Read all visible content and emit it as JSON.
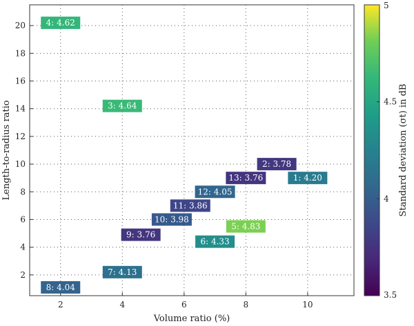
{
  "chart_data": {
    "type": "scatter",
    "title": "",
    "xlabel": "Volume ratio (%)",
    "ylabel": "Length-to-radius ratio",
    "xlim": [
      1,
      11.5
    ],
    "ylim": [
      0.5,
      21.5
    ],
    "xticks": [
      2,
      4,
      6,
      8,
      10
    ],
    "yticks": [
      2,
      4,
      6,
      8,
      10,
      12,
      14,
      16,
      18,
      20
    ],
    "grid": true,
    "colorbar": {
      "label": "Standard deviation (σt) in dB",
      "min": 3.5,
      "max": 5,
      "ticks": [
        3.5,
        4,
        4.5,
        5
      ],
      "colormap": "viridis"
    },
    "points": [
      {
        "label": "1: 4.20",
        "x": 10.0,
        "y": 9.0,
        "value": 4.2
      },
      {
        "label": "2: 3.78",
        "x": 9.0,
        "y": 10.0,
        "value": 3.78
      },
      {
        "label": "3: 4.64",
        "x": 4.0,
        "y": 14.2,
        "value": 4.64
      },
      {
        "label": "4: 4.62",
        "x": 2.0,
        "y": 20.2,
        "value": 4.62
      },
      {
        "label": "5: 4.83",
        "x": 8.0,
        "y": 5.5,
        "value": 4.83
      },
      {
        "label": "6: 4.33",
        "x": 7.0,
        "y": 4.4,
        "value": 4.33
      },
      {
        "label": "7: 4.13",
        "x": 4.0,
        "y": 2.2,
        "value": 4.13
      },
      {
        "label": "8: 4.04",
        "x": 2.0,
        "y": 1.1,
        "value": 4.04
      },
      {
        "label": "9: 3.76",
        "x": 4.6,
        "y": 4.9,
        "value": 3.76
      },
      {
        "label": "10: 3.98",
        "x": 5.6,
        "y": 6.0,
        "value": 3.98
      },
      {
        "label": "11: 3.86",
        "x": 6.2,
        "y": 7.0,
        "value": 3.86
      },
      {
        "label": "12: 4.05",
        "x": 7.0,
        "y": 8.0,
        "value": 4.05
      },
      {
        "label": "13: 3.76",
        "x": 8.0,
        "y": 9.0,
        "value": 3.76
      }
    ]
  }
}
